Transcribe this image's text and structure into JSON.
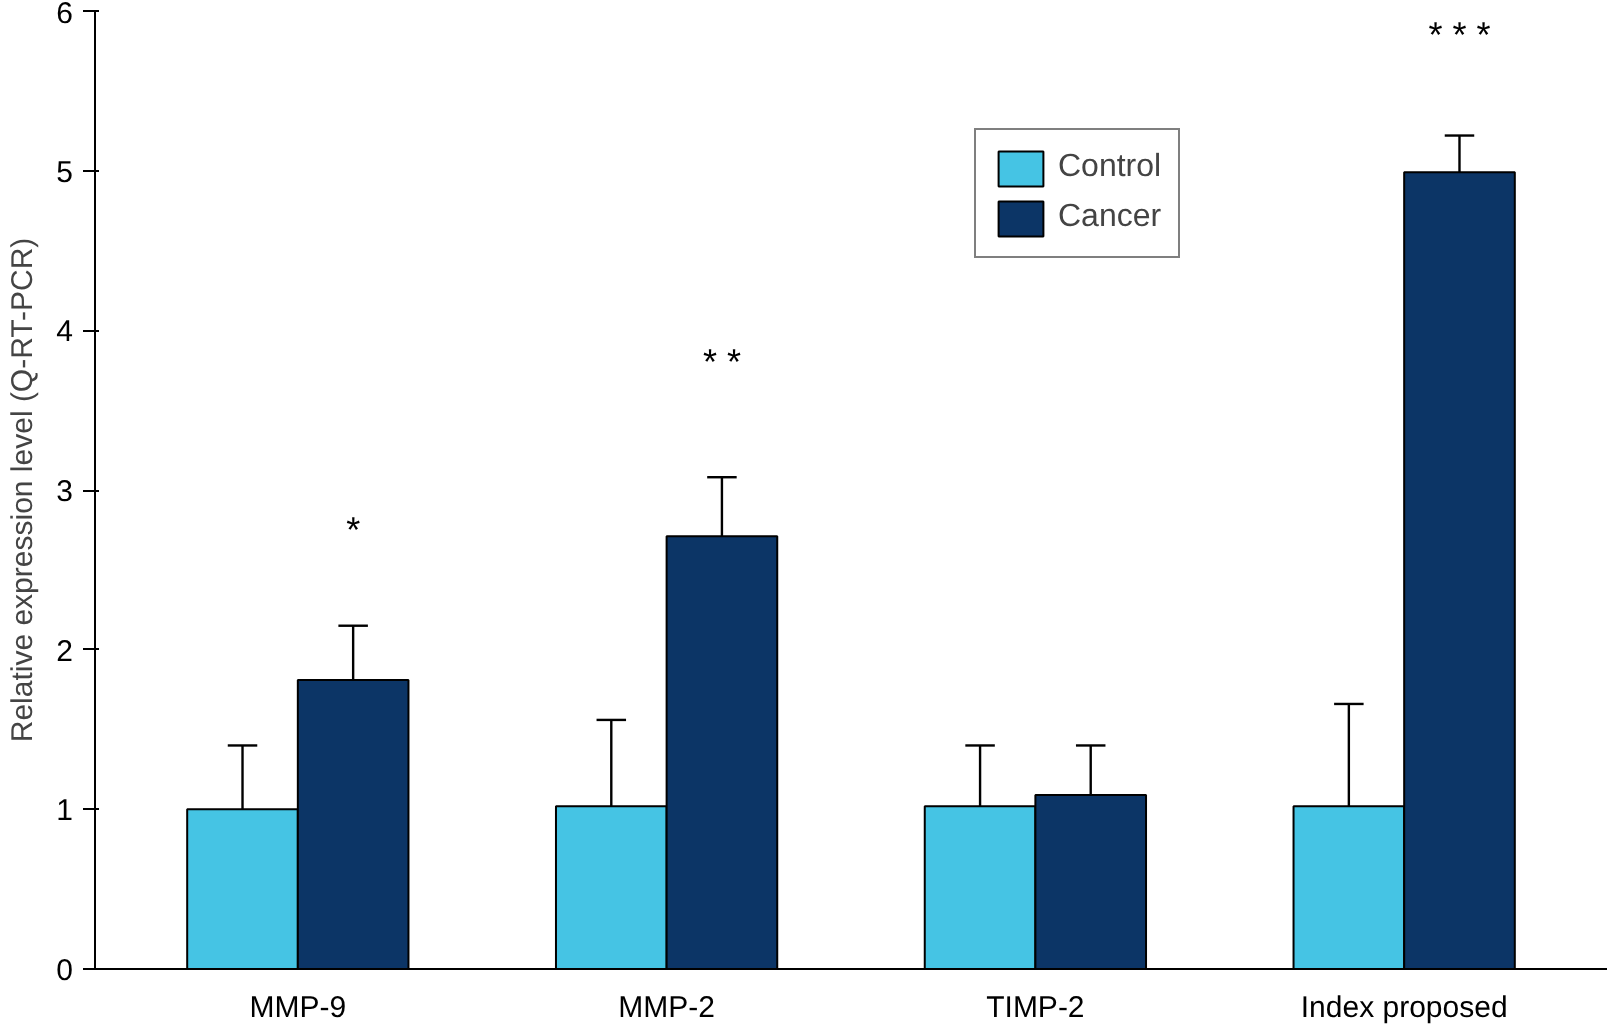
{
  "chart_data": {
    "type": "bar",
    "ylabel": "Relative expression level (Q-RT-PCR)",
    "categories": [
      "MMP-9",
      "MMP-2",
      "TIMP-2",
      "Index proposed"
    ],
    "series": [
      {
        "name": "Control",
        "color": "#45c4e4",
        "values": [
          1.0,
          1.02,
          1.02,
          1.02
        ],
        "errors": [
          [
            1.0,
            1.4
          ],
          [
            1.02,
            1.56
          ],
          [
            1.02,
            1.4
          ],
          [
            1.02,
            1.66
          ]
        ]
      },
      {
        "name": "Cancer",
        "color": "#0c3566",
        "values": [
          1.81,
          2.71,
          1.09,
          4.99
        ],
        "errors": [
          [
            1.81,
            2.15
          ],
          [
            2.71,
            3.08
          ],
          [
            1.09,
            1.4
          ],
          [
            4.99,
            5.22
          ]
        ]
      }
    ],
    "ylim": [
      0,
      6
    ],
    "yticks": [
      0,
      1,
      2,
      3,
      4,
      5,
      6
    ],
    "grid": false,
    "legend": "top right",
    "annotations": [
      "*",
      "* *",
      "* * *"
    ]
  }
}
